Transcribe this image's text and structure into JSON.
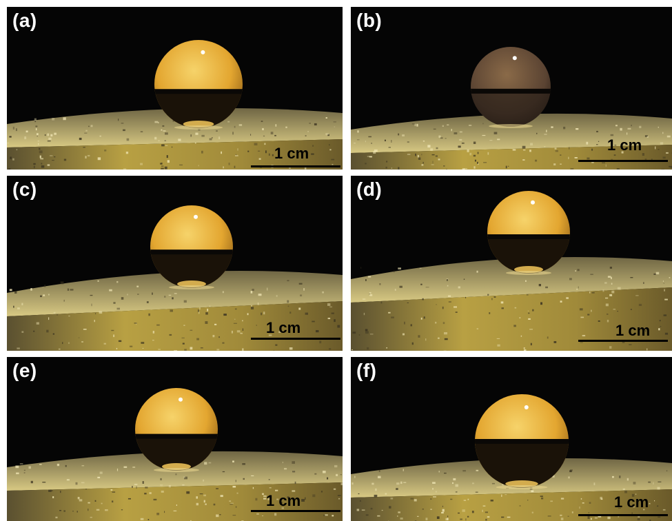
{
  "figure": {
    "panels": [
      {
        "label": "(a)",
        "scale_label": "1 cm"
      },
      {
        "label": "(b)",
        "scale_label": "1 cm"
      },
      {
        "label": "(c)",
        "scale_label": "1 cm"
      },
      {
        "label": "(d)",
        "scale_label": "1 cm"
      },
      {
        "label": "(e)",
        "scale_label": "1 cm"
      },
      {
        "label": "(f)",
        "scale_label": "1 cm"
      }
    ],
    "colors": {
      "background": "#050505",
      "droplet_amber": "#e3a630",
      "droplet_dark": "#1a1208",
      "surface_gold": "#b8a043",
      "surface_dark": "#3a3320",
      "label": "#ffffff",
      "scale": "#000000"
    }
  }
}
